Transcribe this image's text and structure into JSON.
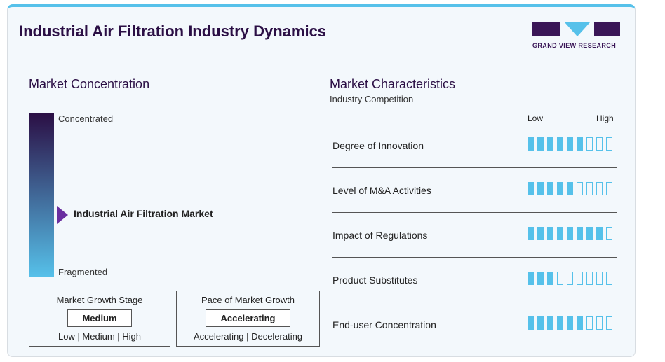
{
  "title": "Industrial Air Filtration Industry Dynamics",
  "logo": "GRAND VIEW RESEARCH",
  "concentration": {
    "heading": "Market Concentration",
    "top": "Concentrated",
    "bottom": "Fragmented",
    "marker": "Industrial Air Filtration Market"
  },
  "growth_stage": {
    "title": "Market Growth Stage",
    "value": "Medium",
    "scale": "Low | Medium | High"
  },
  "pace": {
    "title": "Pace of Market Growth",
    "value": "Accelerating",
    "scale": "Accelerating | Decelerating"
  },
  "characteristics": {
    "heading": "Market Characteristics",
    "sub": "Industry Competition",
    "low": "Low",
    "high": "High",
    "max": 9,
    "rows": [
      {
        "label": "Degree of Innovation",
        "value": 6
      },
      {
        "label": "Level of M&A Activities",
        "value": 5
      },
      {
        "label": "Impact of Regulations",
        "value": 8
      },
      {
        "label": "Product Substitutes",
        "value": 3
      },
      {
        "label": "End-user Concentration",
        "value": 6
      }
    ]
  },
  "colors": {
    "accent": "#56c1ea",
    "brand": "#2b0f45"
  }
}
